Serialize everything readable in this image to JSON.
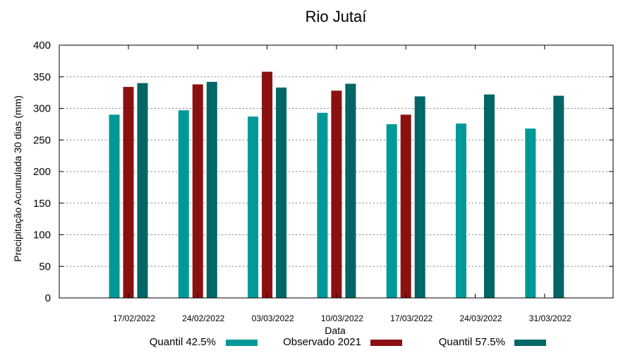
{
  "chart_data": {
    "type": "bar",
    "title": "Rio Jutaí",
    "xlabel": "Data",
    "ylabel": "Precipitação Acumulada 30 dias (mm)",
    "ylim": [
      0,
      400
    ],
    "yticks": [
      0,
      50,
      100,
      150,
      200,
      250,
      300,
      350,
      400
    ],
    "grid": true,
    "legend_position": "bottom",
    "categories": [
      "17/02/2022",
      "24/02/2022",
      "03/03/2022",
      "10/03/2022",
      "17/03/2022",
      "24/03/2022",
      "31/03/2022"
    ],
    "series": [
      {
        "name": "Quantil 42.5%",
        "color": "#009999",
        "values": [
          290,
          297,
          287,
          293,
          275,
          276,
          268
        ]
      },
      {
        "name": "Observado 2021",
        "color": "#8b1010",
        "values": [
          334,
          338,
          358,
          328,
          290,
          null,
          null
        ]
      },
      {
        "name": "Quantil 57.5%",
        "color": "#006666",
        "values": [
          340,
          342,
          333,
          339,
          319,
          322,
          320
        ]
      }
    ]
  }
}
